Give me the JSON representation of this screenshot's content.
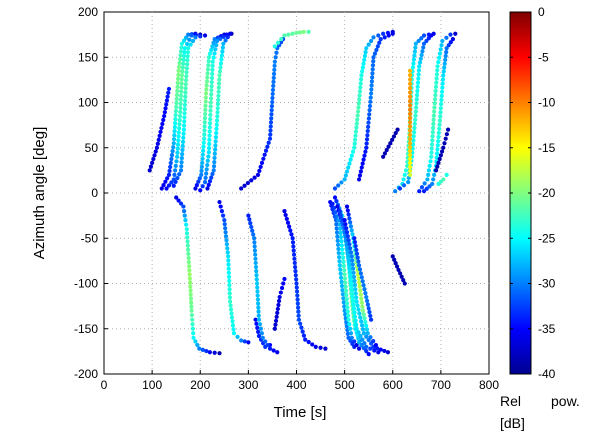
{
  "chart_data": {
    "type": "scatter",
    "xlabel": "Time [s]",
    "ylabel": "Azimuth angle [deg]",
    "xlim": [
      0,
      800
    ],
    "ylim": [
      -200,
      200
    ],
    "xticks": [
      "0",
      "100",
      "200",
      "300",
      "400",
      "500",
      "600",
      "700",
      "800"
    ],
    "yticks": [
      "200",
      "150",
      "100",
      "50",
      "0",
      "-50",
      "-100",
      "-150",
      "-200"
    ],
    "grid": true,
    "colorbar": {
      "label_line1": "Rel",
      "label_pow": "pow.",
      "label_line2": "[dB]",
      "range": [
        -40,
        0
      ],
      "colormap": "jet",
      "ticks": [
        "0",
        "-5",
        "-10",
        "-15",
        "-20",
        "-25",
        "-30",
        "-35",
        "-40"
      ]
    },
    "tracks": [
      {
        "points": [
          [
            95,
            25
          ],
          [
            110,
            50
          ],
          [
            125,
            85
          ],
          [
            135,
            115
          ]
        ],
        "power": [
          -37,
          -36,
          -35,
          -34
        ]
      },
      {
        "points": [
          [
            120,
            5
          ],
          [
            135,
            20
          ],
          [
            145,
            55
          ],
          [
            150,
            95
          ],
          [
            155,
            135
          ],
          [
            162,
            165
          ],
          [
            175,
            175
          ],
          [
            190,
            176
          ]
        ],
        "power": [
          -36,
          -34,
          -28,
          -22,
          -20,
          -24,
          -30,
          -36
        ]
      },
      {
        "points": [
          [
            130,
            5
          ],
          [
            145,
            15
          ],
          [
            152,
            40
          ],
          [
            158,
            85
          ],
          [
            162,
            130
          ],
          [
            168,
            160
          ],
          [
            182,
            174
          ],
          [
            200,
            175
          ]
        ],
        "power": [
          -35,
          -32,
          -27,
          -23,
          -21,
          -25,
          -31,
          -37
        ]
      },
      {
        "points": [
          [
            145,
            8
          ],
          [
            160,
            25
          ],
          [
            166,
            70
          ],
          [
            170,
            120
          ],
          [
            175,
            160
          ],
          [
            190,
            172
          ],
          [
            210,
            174
          ]
        ],
        "power": [
          -34,
          -30,
          -25,
          -22,
          -24,
          -30,
          -36
        ]
      },
      {
        "points": [
          [
            190,
            5
          ],
          [
            202,
            20
          ],
          [
            208,
            60
          ],
          [
            212,
            110
          ],
          [
            218,
            150
          ],
          [
            230,
            170
          ],
          [
            250,
            175
          ]
        ],
        "power": [
          -36,
          -30,
          -24,
          -20,
          -23,
          -30,
          -37
        ]
      },
      {
        "points": [
          [
            200,
            3
          ],
          [
            210,
            12
          ],
          [
            218,
            45
          ],
          [
            222,
            100
          ],
          [
            226,
            145
          ],
          [
            235,
            168
          ],
          [
            255,
            175
          ],
          [
            265,
            176
          ]
        ],
        "power": [
          -35,
          -31,
          -26,
          -22,
          -24,
          -29,
          -35,
          -38
        ]
      },
      {
        "points": [
          [
            215,
            5
          ],
          [
            228,
            25
          ],
          [
            235,
            80
          ],
          [
            240,
            130
          ],
          [
            248,
            165
          ],
          [
            262,
            176
          ]
        ],
        "power": [
          -36,
          -30,
          -24,
          -22,
          -28,
          -36
        ]
      },
      {
        "points": [
          [
            150,
            -5
          ],
          [
            165,
            -15
          ],
          [
            172,
            -40
          ],
          [
            178,
            -90
          ],
          [
            182,
            -130
          ],
          [
            186,
            -160
          ],
          [
            198,
            -172
          ],
          [
            220,
            -176
          ],
          [
            240,
            -177
          ]
        ],
        "power": [
          -36,
          -32,
          -24,
          -19,
          -21,
          -25,
          -30,
          -35,
          -38
        ]
      },
      {
        "points": [
          [
            240,
            -10
          ],
          [
            250,
            -30
          ],
          [
            258,
            -70
          ],
          [
            262,
            -120
          ],
          [
            270,
            -155
          ],
          [
            285,
            -163
          ],
          [
            300,
            -165
          ]
        ],
        "power": [
          -36,
          -32,
          -26,
          -23,
          -25,
          -30,
          -35
        ]
      },
      {
        "points": [
          [
            285,
            5
          ],
          [
            320,
            20
          ],
          [
            345,
            60
          ],
          [
            350,
            105
          ],
          [
            355,
            145
          ],
          [
            360,
            160
          ],
          [
            372,
            170
          ]
        ],
        "power": [
          -37,
          -36,
          -33,
          -31,
          -30,
          -31,
          -33
        ]
      },
      {
        "points": [
          [
            355,
            162
          ],
          [
            375,
            174
          ],
          [
            400,
            177
          ],
          [
            415,
            178
          ],
          [
            425,
            178
          ]
        ],
        "power": [
          -24,
          -22,
          -21,
          -20,
          -22
        ]
      },
      {
        "points": [
          [
            315,
            -140
          ],
          [
            322,
            -158
          ],
          [
            335,
            -170
          ],
          [
            345,
            -168
          ]
        ],
        "power": [
          -35,
          -34,
          -33,
          -35
        ]
      },
      {
        "points": [
          [
            355,
            -150
          ],
          [
            365,
            -115
          ],
          [
            375,
            -95
          ]
        ],
        "power": [
          -37,
          -36,
          -35
        ]
      },
      {
        "points": [
          [
            300,
            -25
          ],
          [
            312,
            -50
          ],
          [
            318,
            -100
          ],
          [
            322,
            -140
          ],
          [
            330,
            -160
          ],
          [
            345,
            -172
          ],
          [
            360,
            -176
          ]
        ],
        "power": [
          -34,
          -30,
          -27,
          -28,
          -30,
          -34,
          -36
        ]
      },
      {
        "points": [
          [
            375,
            -20
          ],
          [
            392,
            -50
          ],
          [
            400,
            -100
          ],
          [
            405,
            -140
          ],
          [
            418,
            -162
          ],
          [
            440,
            -170
          ],
          [
            460,
            -172
          ]
        ],
        "power": [
          -36,
          -34,
          -33,
          -32,
          -34,
          -36,
          -37
        ]
      },
      {
        "points": [
          [
            470,
            -10
          ],
          [
            482,
            -30
          ],
          [
            490,
            -80
          ],
          [
            500,
            -130
          ],
          [
            508,
            -160
          ],
          [
            520,
            -170
          ],
          [
            530,
            -172
          ]
        ],
        "power": [
          -35,
          -31,
          -27,
          -29,
          -31,
          -34,
          -36
        ]
      },
      {
        "points": [
          [
            475,
            -12
          ],
          [
            490,
            -35
          ],
          [
            500,
            -90
          ],
          [
            508,
            -140
          ],
          [
            515,
            -160
          ],
          [
            525,
            -168
          ]
        ],
        "power": [
          -34,
          -28,
          -22,
          -24,
          -30,
          -36
        ]
      },
      {
        "points": [
          [
            480,
            -5
          ],
          [
            495,
            -25
          ],
          [
            508,
            -75
          ],
          [
            515,
            -120
          ],
          [
            522,
            -150
          ],
          [
            535,
            -168
          ]
        ],
        "power": [
          -35,
          -26,
          -22,
          -20,
          -26,
          -33
        ]
      },
      {
        "points": [
          [
            485,
            -15
          ],
          [
            500,
            -40
          ],
          [
            512,
            -90
          ],
          [
            520,
            -140
          ],
          [
            530,
            -165
          ],
          [
            550,
            -178
          ]
        ],
        "power": [
          -36,
          -32,
          -25,
          -21,
          -28,
          -35
        ]
      },
      {
        "points": [
          [
            490,
            -20
          ],
          [
            505,
            -55
          ],
          [
            515,
            -110
          ],
          [
            525,
            -150
          ],
          [
            545,
            -170
          ],
          [
            570,
            -176
          ]
        ],
        "power": [
          -33,
          -29,
          -24,
          -26,
          -31,
          -36
        ]
      },
      {
        "points": [
          [
            500,
            -30
          ],
          [
            515,
            -70
          ],
          [
            525,
            -120
          ],
          [
            540,
            -155
          ],
          [
            560,
            -170
          ],
          [
            590,
            -176
          ]
        ],
        "power": [
          -35,
          -30,
          -26,
          -28,
          -33,
          -37
        ]
      },
      {
        "points": [
          [
            505,
            -15
          ],
          [
            518,
            -50
          ],
          [
            528,
            -90
          ],
          [
            538,
            -130
          ],
          [
            548,
            -155
          ],
          [
            565,
            -168
          ]
        ],
        "power": [
          -36,
          -26,
          -17,
          -20,
          -28,
          -35
        ]
      },
      {
        "points": [
          [
            520,
            -50
          ],
          [
            530,
            -80
          ],
          [
            545,
            -115
          ],
          [
            555,
            -140
          ]
        ],
        "power": [
          -34,
          -31,
          -30,
          -33
        ]
      },
      {
        "points": [
          [
            600,
            -70
          ],
          [
            612,
            -85
          ],
          [
            625,
            -100
          ]
        ],
        "power": [
          -38,
          -38,
          -38
        ]
      },
      {
        "points": [
          [
            480,
            5
          ],
          [
            500,
            15
          ],
          [
            520,
            50
          ],
          [
            528,
            90
          ],
          [
            535,
            130
          ],
          [
            545,
            160
          ],
          [
            560,
            172
          ],
          [
            580,
            176
          ],
          [
            600,
            178
          ]
        ],
        "power": [
          -32,
          -28,
          -24,
          -22,
          -24,
          -27,
          -30,
          -33,
          -36
        ]
      },
      {
        "points": [
          [
            530,
            15
          ],
          [
            545,
            50
          ],
          [
            555,
            110
          ],
          [
            560,
            150
          ],
          [
            575,
            170
          ],
          [
            600,
            176
          ]
        ],
        "power": [
          -36,
          -34,
          -30,
          -31,
          -33,
          -36
        ]
      },
      {
        "points": [
          [
            580,
            40
          ],
          [
            595,
            55
          ],
          [
            610,
            70
          ]
        ],
        "power": [
          -38,
          -38,
          -38
        ]
      },
      {
        "points": [
          [
            605,
            2
          ],
          [
            620,
            10
          ],
          [
            630,
            30
          ],
          [
            635,
            70
          ],
          [
            640,
            130
          ],
          [
            648,
            165
          ],
          [
            665,
            174
          ],
          [
            685,
            176
          ]
        ],
        "power": [
          -30,
          -26,
          -23,
          -22,
          -24,
          -28,
          -32,
          -36
        ]
      },
      {
        "points": [
          [
            615,
            5
          ],
          [
            632,
            12
          ],
          [
            640,
            40
          ],
          [
            648,
            90
          ],
          [
            655,
            140
          ],
          [
            665,
            165
          ],
          [
            680,
            174
          ]
        ],
        "power": [
          -33,
          -29,
          -25,
          -23,
          -26,
          -31,
          -35
        ]
      },
      {
        "points": [
          [
            636,
            135
          ],
          [
            636,
            92
          ],
          [
            636,
            55
          ],
          [
            636,
            20
          ]
        ],
        "power": [
          -12,
          -10,
          -12,
          -17
        ]
      },
      {
        "points": [
          [
            655,
            2
          ],
          [
            672,
            15
          ],
          [
            680,
            40
          ],
          [
            686,
            90
          ],
          [
            693,
            140
          ],
          [
            703,
            168
          ],
          [
            720,
            175
          ],
          [
            730,
            176
          ]
        ],
        "power": [
          -34,
          -28,
          -24,
          -22,
          -24,
          -28,
          -33,
          -37
        ]
      },
      {
        "points": [
          [
            665,
            2
          ],
          [
            682,
            10
          ],
          [
            690,
            30
          ],
          [
            698,
            80
          ],
          [
            705,
            130
          ],
          [
            712,
            160
          ],
          [
            725,
            170
          ]
        ],
        "power": [
          -34,
          -30,
          -26,
          -23,
          -26,
          -31,
          -36
        ]
      },
      {
        "points": [
          [
            690,
            25
          ],
          [
            705,
            50
          ],
          [
            715,
            70
          ]
        ],
        "power": [
          -38,
          -38,
          -38
        ]
      },
      {
        "points": [
          [
            695,
            10
          ],
          [
            705,
            15
          ],
          [
            712,
            20
          ]
        ],
        "power": [
          -24,
          -22,
          -24
        ]
      }
    ]
  }
}
